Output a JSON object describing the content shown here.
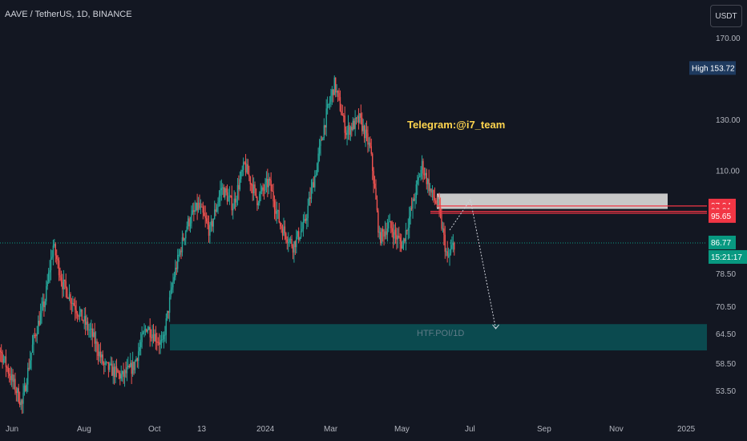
{
  "header": {
    "title": "AAVE / TetherUS, 1D, BINANCE",
    "unit": "USDT"
  },
  "annotations": {
    "telegram": "Telegram:@i7_team",
    "poi_label": "HTF.POI/1D"
  },
  "colors": {
    "up": "#26a69a",
    "down": "#ef5350",
    "zone": "#0b4a4f",
    "supply": "#c8c8c8",
    "background": "#131722"
  },
  "price_axis": {
    "ticks": [
      "170.00",
      "130.00",
      "110.00",
      "78.50",
      "70.50",
      "64.50",
      "58.50",
      "53.50"
    ],
    "badges": [
      {
        "label": "High",
        "value": "153.72",
        "color": "#1e3a5f"
      },
      {
        "value": "97.94",
        "color": "#f23645"
      },
      {
        "value": "96.21",
        "color": "#f23645"
      },
      {
        "value": "95.65",
        "color": "#f23645"
      },
      {
        "value": "86.77",
        "color": "#089981"
      },
      {
        "value": "15:21:17",
        "color": "#089981"
      }
    ]
  },
  "time_axis": {
    "labels": [
      "Jun",
      "Aug",
      "Oct",
      "13",
      "2024",
      "Mar",
      "May",
      "Jul",
      "Sep",
      "Nov",
      "2025"
    ]
  },
  "chart_data": {
    "type": "candlestick",
    "symbol": "AAVE / TetherUS",
    "interval": "1D",
    "exchange": "BINANCE",
    "y_scale": "log",
    "current_price": 86.77,
    "high": 153.72,
    "levels": [
      97.94,
      96.21,
      95.65
    ],
    "supply_zone": [
      97.0,
      102.0
    ],
    "htf_poi_zone": [
      61.0,
      66.5
    ],
    "projection": [
      {
        "date": "2024-06-20",
        "price": 90.5
      },
      {
        "date": "2024-07-08",
        "price": 100.0
      },
      {
        "date": "2024-07-30",
        "price": 65.5
      }
    ],
    "path": [
      [
        "2023-05-15",
        70
      ],
      [
        "2023-05-25",
        62
      ],
      [
        "2023-06-05",
        56
      ],
      [
        "2023-06-15",
        51
      ],
      [
        "2023-06-25",
        63
      ],
      [
        "2023-07-05",
        72
      ],
      [
        "2023-07-12",
        86
      ],
      [
        "2023-07-20",
        76
      ],
      [
        "2023-08-01",
        70
      ],
      [
        "2023-08-15",
        64
      ],
      [
        "2023-08-25",
        58
      ],
      [
        "2023-09-10",
        56
      ],
      [
        "2023-09-20",
        58
      ],
      [
        "2023-10-01",
        66
      ],
      [
        "2023-10-15",
        62
      ],
      [
        "2023-10-25",
        78
      ],
      [
        "2023-11-05",
        92
      ],
      [
        "2023-11-15",
        98
      ],
      [
        "2023-11-25",
        90
      ],
      [
        "2023-12-05",
        104
      ],
      [
        "2023-12-15",
        98
      ],
      [
        "2023-12-25",
        112
      ],
      [
        "2024-01-05",
        100
      ],
      [
        "2024-01-15",
        106
      ],
      [
        "2024-01-25",
        92
      ],
      [
        "2024-02-05",
        86
      ],
      [
        "2024-02-15",
        92
      ],
      [
        "2024-02-25",
        110
      ],
      [
        "2024-03-05",
        132
      ],
      [
        "2024-03-12",
        146
      ],
      [
        "2024-03-22",
        125
      ],
      [
        "2024-04-03",
        130
      ],
      [
        "2024-04-12",
        118
      ],
      [
        "2024-04-20",
        88
      ],
      [
        "2024-04-28",
        92
      ],
      [
        "2024-05-10",
        86
      ],
      [
        "2024-05-20",
        100
      ],
      [
        "2024-05-27",
        112
      ],
      [
        "2024-06-04",
        102
      ],
      [
        "2024-06-10",
        98
      ],
      [
        "2024-06-18",
        82
      ],
      [
        "2024-06-24",
        86.77
      ]
    ]
  }
}
